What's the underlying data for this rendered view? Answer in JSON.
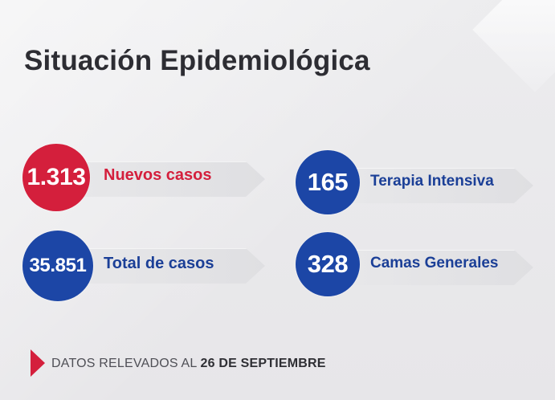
{
  "title": "Situación Epidemiológica",
  "stats": [
    {
      "value": "1.313",
      "label": "Nuevos casos",
      "color": "#d41f3c",
      "label_color": "#d41f3c"
    },
    {
      "value": "165",
      "label": "Terapia Intensiva",
      "color": "#1c46a6",
      "label_color": "#1b3f97"
    },
    {
      "value": "35.851",
      "label": "Total de casos",
      "color": "#1c46a6",
      "label_color": "#1b3f97"
    },
    {
      "value": "328",
      "label": "Camas Generales",
      "color": "#1c46a6",
      "label_color": "#1b3f97"
    }
  ],
  "footer": {
    "prefix": "DATOS RELEVADOS AL ",
    "date": "26 DE SEPTIEMBRE",
    "arrow_color": "#d41f3c",
    "icon": "play-arrow-icon"
  },
  "background": "#e9e8ea"
}
